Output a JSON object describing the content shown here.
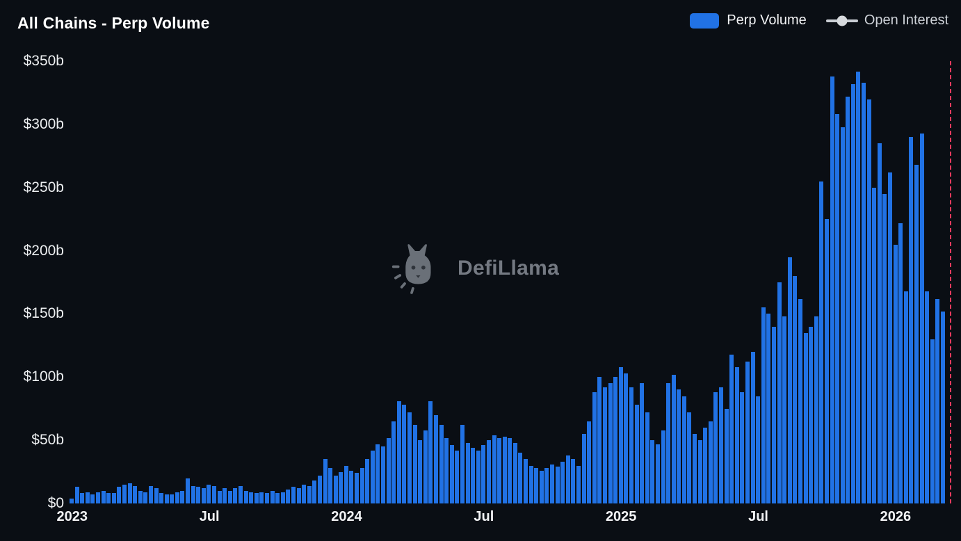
{
  "header": {
    "title": "All Chains - Perp Volume",
    "legend": [
      {
        "label": "Perp Volume",
        "type": "bar",
        "color": "#2172e5"
      },
      {
        "label": "Open Interest",
        "type": "line",
        "color": "#d1d5db"
      }
    ]
  },
  "watermark": {
    "text": "DefiLlama"
  },
  "chart_data": {
    "type": "bar",
    "title": "All Chains - Perp Volume",
    "unit": "USD billions",
    "interval": "weekly",
    "x_start": "2023-01",
    "x_end": "2026-02",
    "grid": false,
    "legend_position": "top-right",
    "ylim": [
      0,
      350
    ],
    "y_ticks": [
      {
        "value": 0,
        "label": "$0"
      },
      {
        "value": 50,
        "label": "$50b"
      },
      {
        "value": 100,
        "label": "$100b"
      },
      {
        "value": 150,
        "label": "$150b"
      },
      {
        "value": 200,
        "label": "$200b"
      },
      {
        "value": 250,
        "label": "$250b"
      },
      {
        "value": 300,
        "label": "$300b"
      },
      {
        "value": 350,
        "label": "$350b"
      }
    ],
    "x_ticks": [
      {
        "index": 0,
        "label": "2023"
      },
      {
        "index": 26,
        "label": "Jul"
      },
      {
        "index": 52,
        "label": "2024"
      },
      {
        "index": 78,
        "label": "Jul"
      },
      {
        "index": 104,
        "label": "2025"
      },
      {
        "index": 130,
        "label": "Jul"
      },
      {
        "index": 156,
        "label": "2026"
      }
    ],
    "series": [
      {
        "name": "Perp Volume",
        "color": "#2172e5",
        "values": [
          4,
          13,
          8,
          9,
          7,
          9,
          10,
          8,
          8,
          13,
          15,
          16,
          14,
          10,
          9,
          14,
          12,
          8,
          7,
          7,
          9,
          10,
          20,
          14,
          13,
          12,
          15,
          14,
          10,
          12,
          10,
          12,
          14,
          10,
          9,
          8,
          9,
          8,
          10,
          8,
          9,
          11,
          13,
          12,
          15,
          14,
          18,
          22,
          35,
          28,
          22,
          25,
          30,
          26,
          24,
          28,
          35,
          42,
          47,
          45,
          52,
          65,
          81,
          78,
          72,
          62,
          50,
          58,
          81,
          70,
          62,
          52,
          46,
          42,
          62,
          48,
          44,
          42,
          46,
          50,
          54,
          52,
          53,
          52,
          48,
          40,
          35,
          30,
          28,
          26,
          28,
          31,
          29,
          33,
          38,
          35,
          30,
          55,
          65,
          88,
          100,
          92,
          95,
          100,
          108,
          103,
          92,
          78,
          95,
          72,
          50,
          47,
          58,
          95,
          102,
          90,
          85,
          72,
          55,
          50,
          60,
          65,
          88,
          92,
          75,
          118,
          108,
          88,
          112,
          120,
          85,
          155,
          150,
          140,
          175,
          148,
          195,
          180,
          162,
          135,
          140,
          148,
          255,
          225,
          338,
          308,
          298,
          322,
          332,
          342,
          333,
          320,
          250,
          285,
          245,
          262,
          205,
          222,
          168,
          290,
          268,
          293,
          168,
          130,
          162,
          152
        ]
      }
    ],
    "now_marker": {
      "style": "dashed",
      "color": "#ea3b5e",
      "position": "right-edge"
    }
  }
}
